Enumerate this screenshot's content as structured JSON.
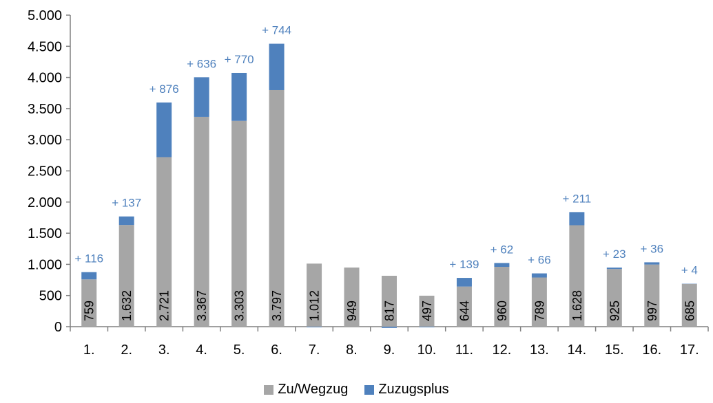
{
  "chart_data": {
    "type": "bar",
    "stacked": true,
    "categories": [
      "1.",
      "2.",
      "3.",
      "4.",
      "5.",
      "6.",
      "7.",
      "8.",
      "9.",
      "10.",
      "11.",
      "12.",
      "13.",
      "14.",
      "15.",
      "16.",
      "17."
    ],
    "series": [
      {
        "name": "Zu/Wegzug",
        "color": "#A6A6A6",
        "values": [
          759,
          1632,
          2721,
          3367,
          3303,
          3797,
          1012,
          949,
          817,
          497,
          644,
          960,
          789,
          1628,
          925,
          997,
          685
        ],
        "labels": [
          "759",
          "1.632",
          "2.721",
          "3.367",
          "3.303",
          "3.797",
          "1.012",
          "949",
          "817",
          "497",
          "644",
          "960",
          "789",
          "1.628",
          "925",
          "997",
          "685"
        ]
      },
      {
        "name": "Zuzugsplus",
        "color": "#4F81BD",
        "values": [
          116,
          137,
          876,
          636,
          770,
          744,
          -10,
          0,
          -20,
          -10,
          139,
          62,
          66,
          211,
          23,
          36,
          4
        ],
        "labels": [
          "+ 116",
          "+ 137",
          "+ 876",
          "+ 636",
          "+ 770",
          "+ 744",
          "",
          "",
          "",
          "",
          "+ 139",
          "+ 62",
          "+ 66",
          "+ 211",
          "+ 23",
          "+ 36",
          "+ 4"
        ]
      }
    ],
    "ylim": [
      0,
      5000
    ],
    "yticks": [
      0,
      500,
      1000,
      1500,
      2000,
      2500,
      3000,
      3500,
      4000,
      4500,
      5000
    ],
    "ytick_labels": [
      "0",
      "500",
      "1.000",
      "1.500",
      "2.000",
      "2.500",
      "3.000",
      "3.500",
      "4.000",
      "4.500",
      "5.000"
    ],
    "grid": false,
    "legend_position": "bottom",
    "plus_label_color": "#4F81BD"
  }
}
